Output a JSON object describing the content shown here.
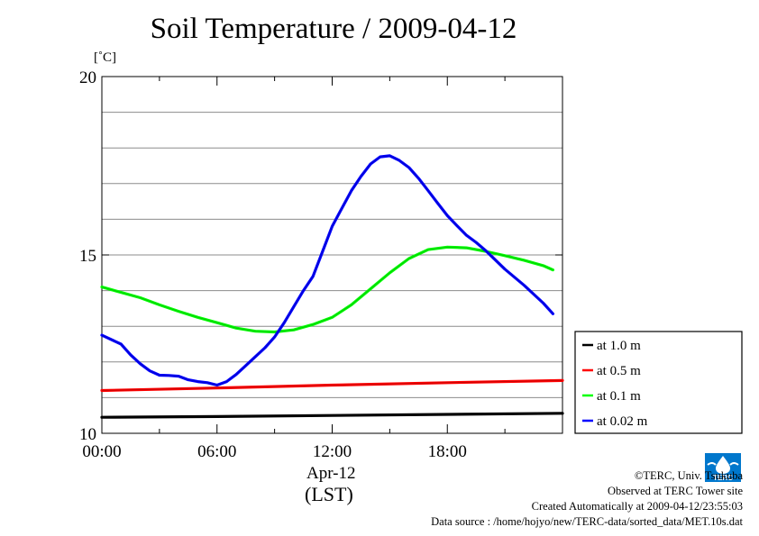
{
  "chart_data": {
    "type": "line",
    "title": "Soil Temperature / 2009-04-12",
    "ylabel": "[˚C]",
    "xlabel": "Apr-12",
    "xlabel2": "(LST)",
    "ylim": [
      10,
      20
    ],
    "xlim": [
      0,
      24
    ],
    "yticks": [
      {
        "v": 10,
        "label": "10"
      },
      {
        "v": 15,
        "label": "15"
      },
      {
        "v": 20,
        "label": "20"
      }
    ],
    "ygrid": [
      11,
      12,
      13,
      14,
      16,
      17,
      18,
      19
    ],
    "xticks": [
      {
        "v": 0,
        "label": "00:00"
      },
      {
        "v": 6,
        "label": "06:00"
      },
      {
        "v": 12,
        "label": "12:00"
      },
      {
        "v": 18,
        "label": "18:00"
      }
    ],
    "xminor": [
      3,
      9,
      15,
      21
    ],
    "grid": true,
    "legend_position": "right",
    "series": [
      {
        "name": "at 1.0 m",
        "color": "#000000",
        "x": [
          0,
          6,
          12,
          18,
          24
        ],
        "y": [
          10.45,
          10.47,
          10.5,
          10.53,
          10.56
        ]
      },
      {
        "name": "at 0.5 m",
        "color": "#ff0000",
        "x": [
          0,
          6,
          12,
          18,
          24
        ],
        "y": [
          11.2,
          11.27,
          11.35,
          11.42,
          11.48
        ]
      },
      {
        "name": "at 0.1 m",
        "color": "#00ff00",
        "x": [
          0,
          1,
          2,
          3,
          4,
          5,
          6,
          7,
          8,
          9,
          10,
          11,
          12,
          13,
          14,
          15,
          16,
          17,
          18,
          19,
          20,
          21,
          22,
          23,
          23.5
        ],
        "y": [
          14.1,
          13.95,
          13.8,
          13.6,
          13.42,
          13.25,
          13.1,
          12.95,
          12.86,
          12.84,
          12.9,
          13.05,
          13.25,
          13.6,
          14.05,
          14.5,
          14.9,
          15.15,
          15.22,
          15.2,
          15.1,
          14.98,
          14.85,
          14.7,
          14.58
        ]
      },
      {
        "name": "at 0.02 m",
        "color": "#0000ff",
        "x": [
          0,
          1,
          1.5,
          2,
          2.5,
          3,
          3.5,
          4,
          4.5,
          5,
          5.5,
          6,
          6.5,
          7,
          7.5,
          8,
          8.5,
          9,
          9.5,
          10,
          10.5,
          11,
          11.5,
          12,
          12.5,
          13,
          13.5,
          14,
          14.5,
          15,
          15.5,
          16,
          16.5,
          17,
          17.5,
          18,
          18.5,
          19,
          19.5,
          20,
          21,
          22,
          23,
          23.5
        ],
        "y": [
          12.75,
          12.5,
          12.2,
          11.95,
          11.75,
          11.63,
          11.62,
          11.6,
          11.5,
          11.45,
          11.42,
          11.35,
          11.45,
          11.65,
          11.9,
          12.15,
          12.4,
          12.7,
          13.1,
          13.55,
          14.0,
          14.4,
          15.1,
          15.8,
          16.3,
          16.8,
          17.2,
          17.55,
          17.75,
          17.78,
          17.65,
          17.45,
          17.15,
          16.8,
          16.45,
          16.1,
          15.82,
          15.55,
          15.35,
          15.12,
          14.6,
          14.15,
          13.65,
          13.35
        ]
      }
    ]
  },
  "credits": {
    "copyright": "©TERC, Univ. Tsukuba",
    "observed": "Observed at TERC Tower site",
    "created": "Created Automatically at 2009-04-12/23:55:03",
    "source": "Data source : /home/hojyo/new/TERC-data/sorted_data/MET.10s.dat"
  },
  "logo": {
    "text": "TERC",
    "color": "#0077cc"
  }
}
